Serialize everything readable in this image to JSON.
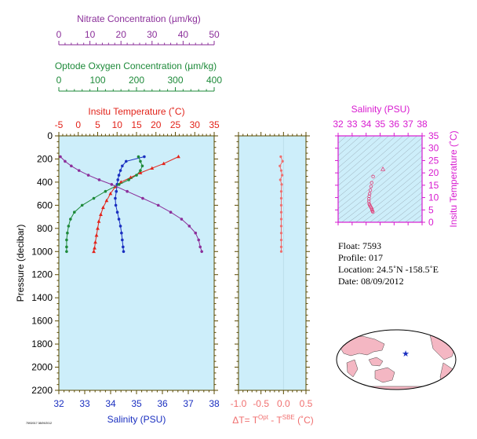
{
  "colors": {
    "nitrate": "#8b2f9a",
    "oxygen": "#1e8a3a",
    "temperature": "#e2231a",
    "salinity": "#1a2fc0",
    "delta": "#f06f6f",
    "magenta": "#d81bd0",
    "plot_bg": "#cdeefa",
    "frame": "#5a4a00"
  },
  "chart_data": [
    {
      "type": "line",
      "title": "",
      "ylabel": "Pressure (decibar)",
      "ylim": [
        2200,
        0
      ],
      "y_ticks": [
        "0",
        "200",
        "400",
        "600",
        "800",
        "1000",
        "1200",
        "1400",
        "1600",
        "1800",
        "2000",
        "2200"
      ],
      "axes": {
        "nitrate": {
          "label": "Nitrate Concentration (µm/kg)",
          "range": [
            0,
            50
          ],
          "ticks": [
            "0",
            "10",
            "20",
            "30",
            "40",
            "50"
          ]
        },
        "oxygen": {
          "label": "Optode Oxygen Concentration (µm/kg)",
          "range": [
            0,
            400
          ],
          "ticks": [
            "0",
            "100",
            "200",
            "300",
            "400"
          ]
        },
        "temperature": {
          "label": "Insitu Temperature (˚C)",
          "range": [
            -5,
            35
          ],
          "ticks": [
            "-5",
            "0",
            "5",
            "10",
            "15",
            "20",
            "25",
            "30",
            "35"
          ]
        },
        "salinity": {
          "label": "Salinity (PSU)",
          "range": [
            32,
            38
          ],
          "ticks": [
            "32",
            "33",
            "34",
            "35",
            "36",
            "37",
            "38"
          ]
        }
      },
      "series": [
        {
          "axis": "temperature",
          "marker": "triangle",
          "x": [
            25.8,
            22.0,
            19.0,
            16.0,
            13.5,
            11.0,
            9.5,
            8.3,
            7.3,
            6.4,
            5.8,
            5.3,
            5.0,
            4.7,
            4.4,
            4.2,
            4.0
          ],
          "y": [
            180,
            240,
            280,
            320,
            360,
            400,
            440,
            500,
            560,
            620,
            680,
            740,
            800,
            860,
            920,
            970,
            1000
          ]
        },
        {
          "axis": "salinity",
          "marker": "dot",
          "x": [
            35.3,
            34.6,
            34.45,
            34.38,
            34.32,
            34.28,
            34.25,
            34.22,
            34.18,
            34.2,
            34.26,
            34.32,
            34.38,
            34.42,
            34.45,
            34.48,
            34.5
          ],
          "y": [
            180,
            220,
            260,
            300,
            340,
            380,
            420,
            480,
            540,
            600,
            660,
            720,
            780,
            840,
            900,
            960,
            1000
          ]
        },
        {
          "axis": "oxygen",
          "marker": "dot",
          "x": [
            205,
            210,
            215,
            210,
            200,
            180,
            155,
            120,
            90,
            60,
            40,
            30,
            25,
            22,
            20,
            20,
            20
          ],
          "y": [
            180,
            220,
            260,
            300,
            340,
            380,
            420,
            480,
            540,
            600,
            660,
            720,
            780,
            840,
            900,
            960,
            1000
          ]
        },
        {
          "axis": "nitrate",
          "marker": "dot",
          "x": [
            0.5,
            2.0,
            4.0,
            6.5,
            9.5,
            13.0,
            17.0,
            22.0,
            27.0,
            32.0,
            36.0,
            39.5,
            42.0,
            44.0,
            45.0,
            45.5,
            46.0
          ],
          "y": [
            180,
            220,
            260,
            300,
            340,
            380,
            420,
            480,
            540,
            600,
            660,
            720,
            780,
            840,
            900,
            960,
            1000
          ]
        }
      ]
    },
    {
      "type": "scatter",
      "xlabel": "ΔT= T",
      "xlabel_sup1": "Opt",
      "xlabel_mid": " - T",
      "xlabel_sup2": "SBE",
      "xlabel_tail": " (˚C)",
      "xlim": [
        -1.0,
        0.5
      ],
      "ylim": [
        2200,
        0
      ],
      "x_ticks": [
        "-1.0",
        "-0.5",
        "0.0",
        "0.5"
      ],
      "x": [
        -0.06,
        -0.02,
        -0.08,
        -0.05,
        -0.03,
        -0.07,
        -0.04,
        -0.05,
        -0.05,
        -0.05,
        -0.05,
        -0.05,
        -0.05,
        -0.05,
        -0.05,
        -0.05,
        -0.05
      ],
      "y": [
        180,
        220,
        260,
        300,
        340,
        380,
        420,
        480,
        540,
        600,
        660,
        720,
        780,
        840,
        900,
        960,
        1000
      ]
    },
    {
      "type": "scatter",
      "title": "Salinity (PSU)",
      "ylabel": "Insitu Temperature (˚C)",
      "xlim": [
        32,
        38
      ],
      "ylim": [
        0,
        35
      ],
      "x_ticks": [
        "32",
        "33",
        "34",
        "35",
        "36",
        "37",
        "38"
      ],
      "y_ticks": [
        "0",
        "5",
        "10",
        "15",
        "20",
        "25",
        "30",
        "35"
      ],
      "x": [
        35.2,
        34.5,
        34.4,
        34.35,
        34.3,
        34.25,
        34.22,
        34.2,
        34.2,
        34.22,
        34.25,
        34.3,
        34.35,
        34.4,
        34.42,
        34.45,
        34.48
      ],
      "y": [
        21.5,
        18.5,
        16.0,
        14.5,
        13.0,
        11.5,
        10.5,
        9.5,
        8.5,
        7.5,
        7.0,
        6.5,
        6.0,
        5.5,
        5.0,
        4.6,
        4.2
      ]
    }
  ],
  "info": {
    "float": "Float:  7593",
    "profile": "Profile:  017",
    "location": "Location:  24.5˚N  -158.5˚E",
    "date": "Date:  08/09/2012"
  },
  "footer_code": "7593/017 08/09/2012"
}
